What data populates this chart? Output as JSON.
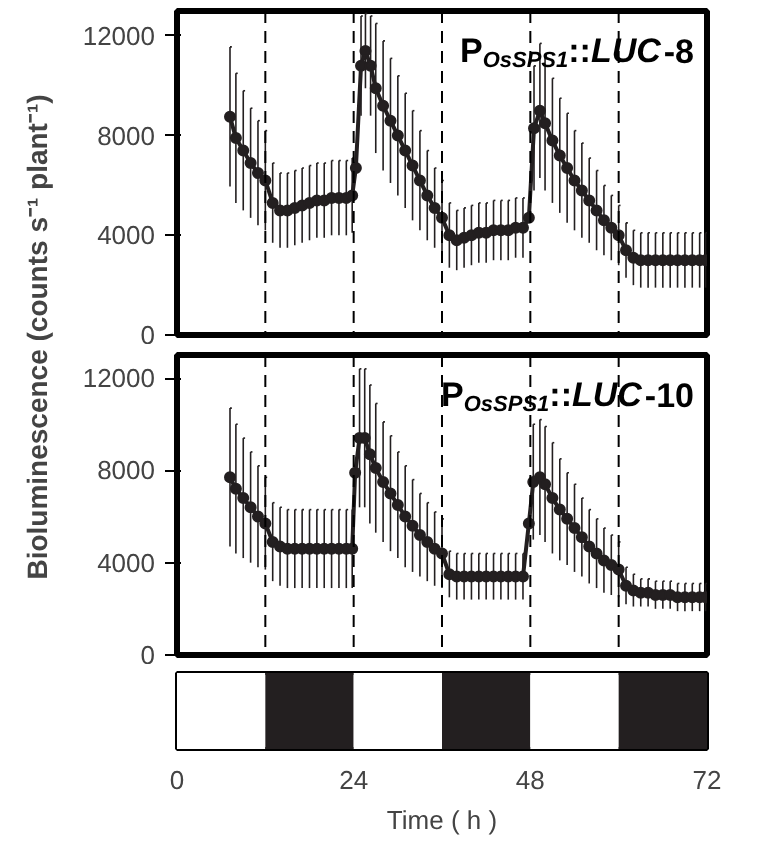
{
  "chart_data": [
    {
      "type": "line",
      "title": "P$_{OsSPS1}$::LUC-8",
      "ylabel": "Bioluminescence (counts s⁻¹ plant⁻¹)",
      "xlim": [
        0,
        72
      ],
      "ylim": [
        0,
        13000
      ],
      "yticks": [
        0,
        4000,
        8000,
        12000
      ],
      "tick_labels": "y",
      "grid": false,
      "marker": "circle",
      "x": [
        7.2,
        8,
        9,
        10,
        11,
        12,
        13,
        14,
        15,
        16,
        17,
        18,
        19,
        20,
        21,
        22,
        23,
        23.8,
        24.3,
        25,
        25.6,
        26.3,
        27,
        28,
        29,
        30,
        31,
        32,
        33,
        34,
        35,
        36,
        37,
        38,
        39,
        40,
        41,
        42,
        43,
        44,
        45,
        46,
        47,
        47.8,
        48.5,
        49.3,
        50,
        51,
        52,
        53,
        54,
        55,
        56,
        57,
        58,
        59,
        60,
        61,
        62,
        63,
        64,
        65,
        66,
        67,
        68,
        69,
        70,
        71,
        71.8
      ],
      "series": [
        {
          "color": "#231f20",
          "values": [
            8760,
            7900,
            7400,
            6900,
            6500,
            6200,
            5300,
            5000,
            5000,
            5100,
            5200,
            5300,
            5400,
            5400,
            5500,
            5500,
            5500,
            5600,
            6700,
            10800,
            11400,
            10800,
            9900,
            9200,
            8600,
            8000,
            7400,
            6800,
            6200,
            5600,
            5100,
            4700,
            4000,
            3800,
            3900,
            4000,
            4100,
            4100,
            4200,
            4200,
            4200,
            4300,
            4300,
            4700,
            8300,
            9000,
            8500,
            7800,
            7200,
            6700,
            6200,
            5800,
            5400,
            5000,
            4600,
            4300,
            4000,
            3400,
            3100,
            3000,
            3000,
            3000,
            3000,
            3000,
            3000,
            3000,
            3000,
            3000,
            3000
          ],
          "errors": [
            2800,
            2600,
            2400,
            2200,
            2100,
            2000,
            1600,
            1500,
            1500,
            1500,
            1500,
            1500,
            1500,
            1500,
            1500,
            1500,
            1500,
            1500,
            null,
            2000,
            1500,
            2000,
            2600,
            2600,
            2500,
            2400,
            2300,
            2200,
            2000,
            1800,
            1600,
            1500,
            1300,
            1200,
            1200,
            1200,
            1200,
            1200,
            1200,
            1200,
            1200,
            1200,
            1200,
            null,
            2500,
            2700,
            2700,
            2500,
            2300,
            2200,
            2000,
            1900,
            1700,
            1600,
            1400,
            1300,
            1200,
            1100,
            1100,
            1100,
            1100,
            1100,
            1100,
            1100,
            1100,
            1100,
            1100,
            1100,
            1100
          ]
        }
      ],
      "ref_lines": [
        {
          "axis": "x",
          "value": 12,
          "line_style": "dashed"
        },
        {
          "axis": "x",
          "value": 24,
          "line_style": "dashed"
        },
        {
          "axis": "x",
          "value": 36,
          "line_style": "dashed"
        },
        {
          "axis": "x",
          "value": 48,
          "line_style": "dashed"
        },
        {
          "axis": "x",
          "value": 60,
          "line_style": "dashed"
        }
      ]
    },
    {
      "type": "line",
      "title": "P$_{OsSPS1}$::LUC-10",
      "xlim": [
        0,
        72
      ],
      "ylim": [
        0,
        13000
      ],
      "yticks": [
        0,
        4000,
        8000,
        12000
      ],
      "tick_labels": "y",
      "grid": false,
      "marker": "circle",
      "x": [
        7.2,
        8,
        9,
        10,
        11,
        12,
        13,
        14,
        15,
        16,
        17,
        18,
        19,
        20,
        21,
        22,
        23,
        23.8,
        24.2,
        24.8,
        25.5,
        26.2,
        27,
        28,
        29,
        30,
        31,
        32,
        33,
        34,
        35,
        36,
        37,
        38,
        39,
        40,
        41,
        42,
        43,
        44,
        45,
        46,
        47,
        47.8,
        48.4,
        49.3,
        50,
        51,
        52,
        53,
        54,
        55,
        56,
        57,
        58,
        59,
        60,
        61,
        62,
        63,
        64,
        65,
        66,
        67,
        68,
        69,
        70,
        71,
        71.8
      ],
      "series": [
        {
          "color": "#231f20",
          "values": [
            7700,
            7200,
            6800,
            6400,
            6000,
            5700,
            4900,
            4700,
            4600,
            4600,
            4600,
            4600,
            4600,
            4600,
            4600,
            4600,
            4600,
            4600,
            7900,
            9400,
            9400,
            8700,
            8100,
            7500,
            7000,
            6500,
            6000,
            5600,
            5200,
            4900,
            4600,
            4400,
            3500,
            3400,
            3400,
            3400,
            3400,
            3400,
            3400,
            3400,
            3400,
            3400,
            3400,
            5700,
            7500,
            7700,
            7400,
            6800,
            6300,
            5900,
            5500,
            5100,
            4700,
            4400,
            4100,
            3900,
            3700,
            3000,
            2800,
            2700,
            2700,
            2600,
            2600,
            2600,
            2500,
            2500,
            2500,
            2500,
            2500
          ],
          "errors": [
            3000,
            2800,
            2600,
            2400,
            2200,
            2000,
            1700,
            1700,
            1700,
            1700,
            1700,
            1700,
            1700,
            1700,
            1700,
            1700,
            1700,
            1700,
            null,
            3000,
            3000,
            3000,
            2800,
            2600,
            2500,
            2300,
            2200,
            2000,
            1800,
            1700,
            1600,
            1500,
            1000,
            1000,
            1000,
            1000,
            1000,
            1000,
            1000,
            1000,
            1000,
            1000,
            1000,
            null,
            2500,
            2500,
            2500,
            2400,
            2200,
            2000,
            1900,
            1700,
            1600,
            1500,
            1400,
            1300,
            1200,
            800,
            700,
            600,
            600,
            600,
            600,
            600,
            600,
            600,
            600,
            600,
            600
          ]
        }
      ],
      "ref_lines": [
        {
          "axis": "x",
          "value": 12,
          "line_style": "dashed"
        },
        {
          "axis": "x",
          "value": 24,
          "line_style": "dashed"
        },
        {
          "axis": "x",
          "value": 36,
          "line_style": "dashed"
        },
        {
          "axis": "x",
          "value": 48,
          "line_style": "dashed"
        },
        {
          "axis": "x",
          "value": 60,
          "line_style": "dashed"
        }
      ]
    },
    {
      "type": "bar",
      "orientation": "horizontal",
      "stacked": true,
      "categories": [
        null
      ],
      "xlabel": "Time ( h )",
      "xlim": [
        0,
        72
      ],
      "xticks": [
        0,
        24,
        48,
        72
      ],
      "tick_labels": "x",
      "series": [
        {
          "color": "#ffffff",
          "values": [
            12
          ]
        },
        {
          "color": "#231f20",
          "values": [
            12
          ]
        },
        {
          "color": "#ffffff",
          "values": [
            12
          ]
        },
        {
          "color": "#231f20",
          "values": [
            12
          ]
        },
        {
          "color": "#ffffff",
          "values": [
            12
          ]
        },
        {
          "color": "#231f20",
          "values": [
            12
          ]
        }
      ]
    }
  ]
}
